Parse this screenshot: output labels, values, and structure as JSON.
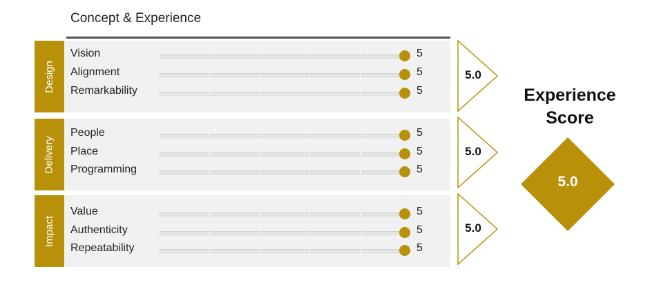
{
  "header": {
    "title": "Concept & Experience"
  },
  "colors": {
    "gold": "#b8900a",
    "panel": "#f1f1f1",
    "track": "#d6d6d6"
  },
  "chart_data": {
    "type": "bar",
    "scale_max": 5,
    "groups": [
      {
        "name": "Design",
        "score": "5.0",
        "items": [
          {
            "label": "Vision",
            "value": 5
          },
          {
            "label": "Alignment",
            "value": 5
          },
          {
            "label": "Remarkability",
            "value": 5
          }
        ]
      },
      {
        "name": "Delivery",
        "score": "5.0",
        "items": [
          {
            "label": "People",
            "value": 5
          },
          {
            "label": "Place",
            "value": 5
          },
          {
            "label": "Programming",
            "value": 5
          }
        ]
      },
      {
        "name": "Impact",
        "score": "5.0",
        "items": [
          {
            "label": "Value",
            "value": 5
          },
          {
            "label": "Authenticity",
            "value": 5
          },
          {
            "label": "Repeatability",
            "value": 5
          }
        ]
      }
    ]
  },
  "experience": {
    "title_line1": "Experience",
    "title_line2": "Score",
    "value": "5.0"
  }
}
